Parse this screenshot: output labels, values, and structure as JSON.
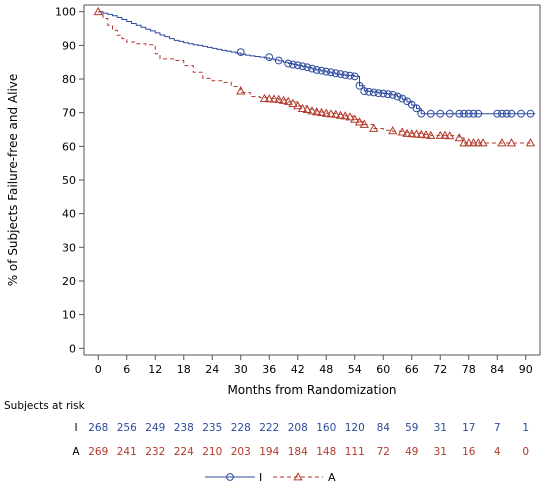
{
  "chart_data": {
    "type": "line",
    "title": "",
    "xlabel": "Months from Randomization",
    "ylabel": "% of Subjects Failure-free and Alive",
    "xlim": [
      -3,
      93
    ],
    "ylim": [
      -2,
      102
    ],
    "x_ticks": [
      0,
      6,
      12,
      18,
      24,
      30,
      36,
      42,
      48,
      54,
      60,
      66,
      72,
      78,
      84,
      90
    ],
    "y_ticks": [
      0,
      10,
      20,
      30,
      40,
      50,
      60,
      70,
      80,
      90,
      100
    ],
    "grid": false,
    "legend_position": "bottom",
    "series": [
      {
        "name": "I",
        "color": "#2e4a9e",
        "line_style": "solid",
        "marker": "circle",
        "steps": [
          [
            0,
            100
          ],
          [
            1,
            99.6
          ],
          [
            2,
            99.2
          ],
          [
            3,
            98.8
          ],
          [
            4,
            98.3
          ],
          [
            5,
            97.7
          ],
          [
            6,
            97.1
          ],
          [
            7,
            96.5
          ],
          [
            8,
            96.0
          ],
          [
            9,
            95.4
          ],
          [
            10,
            94.8
          ],
          [
            11,
            94.3
          ],
          [
            12,
            93.7
          ],
          [
            13,
            93.1
          ],
          [
            14,
            92.6
          ],
          [
            15,
            92.0
          ],
          [
            16,
            91.5
          ],
          [
            17,
            91.2
          ],
          [
            18,
            90.8
          ],
          [
            19,
            90.5
          ],
          [
            20,
            90.2
          ],
          [
            21,
            90.0
          ],
          [
            22,
            89.7
          ],
          [
            23,
            89.4
          ],
          [
            24,
            89.1
          ],
          [
            25,
            88.8
          ],
          [
            26,
            88.5
          ],
          [
            27,
            88.3
          ],
          [
            28,
            88.0
          ],
          [
            29,
            87.7
          ],
          [
            30,
            87.4
          ],
          [
            31,
            87.1
          ],
          [
            32,
            86.9
          ],
          [
            33,
            86.7
          ],
          [
            34,
            86.5
          ],
          [
            35,
            86.3
          ],
          [
            36,
            86.0
          ],
          [
            37,
            85.7
          ],
          [
            38,
            85.4
          ],
          [
            39,
            85.0
          ],
          [
            40,
            84.6
          ],
          [
            41,
            84.3
          ],
          [
            42,
            84.0
          ],
          [
            43,
            83.7
          ],
          [
            44,
            83.4
          ],
          [
            45,
            83.0
          ],
          [
            46,
            82.7
          ],
          [
            47,
            82.4
          ],
          [
            48,
            82.1
          ],
          [
            49,
            81.8
          ],
          [
            50,
            81.5
          ],
          [
            51,
            81.3
          ],
          [
            52,
            81.1
          ],
          [
            53,
            81.0
          ],
          [
            54,
            80.8
          ],
          [
            55,
            78.0
          ],
          [
            56,
            76.5
          ],
          [
            57,
            76.3
          ],
          [
            58,
            76.1
          ],
          [
            59,
            75.9
          ],
          [
            60,
            75.7
          ],
          [
            61,
            75.5
          ],
          [
            62,
            75.3
          ],
          [
            63,
            74.7
          ],
          [
            64,
            74.0
          ],
          [
            65,
            73.2
          ],
          [
            66,
            72.3
          ],
          [
            67,
            71.2
          ],
          [
            68,
            69.7
          ],
          [
            92,
            69.7
          ]
        ],
        "censored": [
          [
            30,
            88.0
          ],
          [
            36,
            86.5
          ],
          [
            38,
            85.5
          ],
          [
            40,
            84.6
          ],
          [
            41,
            84.3
          ],
          [
            42,
            84.1
          ],
          [
            43,
            83.8
          ],
          [
            44,
            83.5
          ],
          [
            45,
            83.1
          ],
          [
            46,
            82.7
          ],
          [
            47,
            82.5
          ],
          [
            48,
            82.2
          ],
          [
            49,
            82.0
          ],
          [
            50,
            81.7
          ],
          [
            51,
            81.5
          ],
          [
            52,
            81.2
          ],
          [
            53,
            81.0
          ],
          [
            54,
            80.8
          ],
          [
            55,
            78.0
          ],
          [
            56,
            76.4
          ],
          [
            57,
            76.2
          ],
          [
            58,
            76.0
          ],
          [
            59,
            75.8
          ],
          [
            60,
            75.7
          ],
          [
            61,
            75.5
          ],
          [
            62,
            75.3
          ],
          [
            63,
            74.8
          ],
          [
            64,
            74.2
          ],
          [
            65,
            73.4
          ],
          [
            66,
            72.4
          ],
          [
            67,
            71.3
          ],
          [
            68,
            69.7
          ],
          [
            70,
            69.7
          ],
          [
            72,
            69.7
          ],
          [
            74,
            69.7
          ],
          [
            76,
            69.7
          ],
          [
            77,
            69.7
          ],
          [
            78,
            69.7
          ],
          [
            79,
            69.7
          ],
          [
            80,
            69.7
          ],
          [
            84,
            69.7
          ],
          [
            85,
            69.7
          ],
          [
            86,
            69.7
          ],
          [
            87,
            69.7
          ],
          [
            89,
            69.7
          ],
          [
            91,
            69.7
          ]
        ]
      },
      {
        "name": "A",
        "color": "#b23a2a",
        "line_style": "dashed",
        "marker": "triangle",
        "steps": [
          [
            0,
            100
          ],
          [
            1,
            98.0
          ],
          [
            2,
            96.0
          ],
          [
            3,
            94.5
          ],
          [
            4,
            93.0
          ],
          [
            5,
            92.0
          ],
          [
            6,
            91.0
          ],
          [
            8,
            90.5
          ],
          [
            10,
            90.2
          ],
          [
            12,
            87.5
          ],
          [
            13,
            86.0
          ],
          [
            16,
            85.5
          ],
          [
            18,
            84.0
          ],
          [
            20,
            82.0
          ],
          [
            22,
            80.2
          ],
          [
            24,
            79.5
          ],
          [
            26,
            79.0
          ],
          [
            28,
            77.8
          ],
          [
            30,
            76.0
          ],
          [
            32,
            74.8
          ],
          [
            34,
            74.5
          ],
          [
            36,
            74.2
          ],
          [
            38,
            73.8
          ],
          [
            40,
            73.2
          ],
          [
            42,
            72.0
          ],
          [
            44,
            71.0
          ],
          [
            46,
            70.2
          ],
          [
            48,
            69.8
          ],
          [
            50,
            69.5
          ],
          [
            52,
            69.0
          ],
          [
            54,
            68.0
          ],
          [
            55,
            67.3
          ],
          [
            56,
            66.5
          ],
          [
            58,
            65.3
          ],
          [
            60,
            64.8
          ],
          [
            62,
            64.5
          ],
          [
            64,
            64.2
          ],
          [
            66,
            63.8
          ],
          [
            68,
            63.5
          ],
          [
            70,
            63.2
          ],
          [
            76,
            62.5
          ],
          [
            77,
            61.0
          ],
          [
            91,
            61.0
          ]
        ],
        "censored": [
          [
            0,
            100
          ],
          [
            30,
            76.4
          ],
          [
            35,
            74.2
          ],
          [
            36,
            74.1
          ],
          [
            37,
            74.0
          ],
          [
            38,
            73.9
          ],
          [
            39,
            73.6
          ],
          [
            40,
            73.3
          ],
          [
            41,
            72.7
          ],
          [
            42,
            72.0
          ],
          [
            43,
            71.2
          ],
          [
            44,
            70.9
          ],
          [
            45,
            70.5
          ],
          [
            46,
            70.2
          ],
          [
            47,
            70.0
          ],
          [
            48,
            69.8
          ],
          [
            49,
            69.6
          ],
          [
            50,
            69.5
          ],
          [
            51,
            69.2
          ],
          [
            52,
            69.0
          ],
          [
            53,
            68.7
          ],
          [
            54,
            68.0
          ],
          [
            55,
            67.2
          ],
          [
            56,
            66.5
          ],
          [
            58,
            65.3
          ],
          [
            62,
            64.6
          ],
          [
            64,
            64.2
          ],
          [
            65,
            63.8
          ],
          [
            66,
            63.7
          ],
          [
            67,
            63.6
          ],
          [
            68,
            63.5
          ],
          [
            69,
            63.4
          ],
          [
            70,
            63.2
          ],
          [
            72,
            63.2
          ],
          [
            73,
            63.2
          ],
          [
            74,
            63.1
          ],
          [
            76,
            62.5
          ],
          [
            77,
            61.0
          ],
          [
            78,
            61.0
          ],
          [
            79,
            61.0
          ],
          [
            80,
            61.0
          ],
          [
            81,
            61.0
          ],
          [
            85,
            61.0
          ],
          [
            87,
            61.0
          ],
          [
            91,
            61.0
          ]
        ]
      }
    ]
  },
  "risk_table": {
    "title": "Subjects at risk",
    "rows": [
      {
        "label": "I",
        "values": [
          "268",
          "256",
          "249",
          "238",
          "235",
          "228",
          "222",
          "208",
          "160",
          "120",
          "84",
          "59",
          "31",
          "17",
          "7",
          "1"
        ]
      },
      {
        "label": "A",
        "values": [
          "269",
          "241",
          "232",
          "224",
          "210",
          "203",
          "194",
          "184",
          "148",
          "111",
          "72",
          "49",
          "31",
          "16",
          "4",
          "0"
        ]
      }
    ]
  },
  "legend": {
    "items": [
      {
        "label": "I"
      },
      {
        "label": "A"
      }
    ]
  }
}
